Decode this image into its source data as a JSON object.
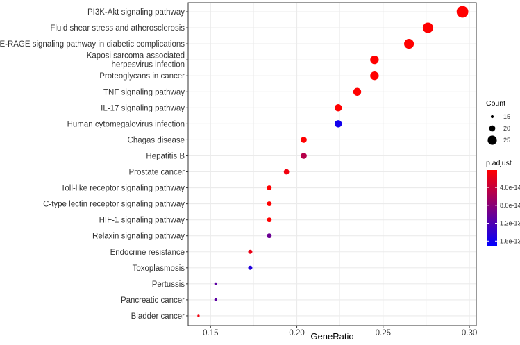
{
  "chart_data": {
    "type": "scatter",
    "title": "",
    "xlabel": "GeneRatio",
    "ylabel": "",
    "xlim": [
      0.137,
      0.304
    ],
    "xticks": [
      0.15,
      0.2,
      0.25,
      0.3
    ],
    "xtick_labels": [
      "0.15",
      "0.20",
      "0.25",
      "0.30"
    ],
    "grid": true,
    "legend_position": "right",
    "points": [
      {
        "term": "PI3K-Akt signaling pathway",
        "gene_ratio": 0.296,
        "count": 29,
        "p_adjust": 1e-15
      },
      {
        "term": "Fluid shear stress and atherosclerosis",
        "gene_ratio": 0.276,
        "count": 27,
        "p_adjust": 1.5e-15
      },
      {
        "term": "AGE-RAGE signaling pathway in diabetic complications",
        "gene_ratio": 0.265,
        "count": 26,
        "p_adjust": 1e-15
      },
      {
        "term": "Kaposi sarcoma-associated\nherpesvirus infection",
        "gene_ratio": 0.245,
        "count": 24,
        "p_adjust": 1e-15
      },
      {
        "term": "Proteoglycans in cancer",
        "gene_ratio": 0.245,
        "count": 24,
        "p_adjust": 1e-15
      },
      {
        "term": "TNF signaling pathway",
        "gene_ratio": 0.235,
        "count": 23,
        "p_adjust": 1e-15
      },
      {
        "term": "IL-17 signaling pathway",
        "gene_ratio": 0.224,
        "count": 22,
        "p_adjust": 1e-15
      },
      {
        "term": "Human cytomegalovirus infection",
        "gene_ratio": 0.224,
        "count": 22,
        "p_adjust": 1.6e-13
      },
      {
        "term": "Chagas disease",
        "gene_ratio": 0.204,
        "count": 20,
        "p_adjust": 1e-15
      },
      {
        "term": "Hepatitis B",
        "gene_ratio": 0.204,
        "count": 20,
        "p_adjust": 5e-14
      },
      {
        "term": "Prostate cancer",
        "gene_ratio": 0.194,
        "count": 19,
        "p_adjust": 1e-14
      },
      {
        "term": "Toll-like receptor signaling pathway",
        "gene_ratio": 0.184,
        "count": 18,
        "p_adjust": 1e-15
      },
      {
        "term": "C-type lectin receptor signaling pathway",
        "gene_ratio": 0.184,
        "count": 18,
        "p_adjust": 1e-15
      },
      {
        "term": "HIF-1 signaling pathway",
        "gene_ratio": 0.184,
        "count": 18,
        "p_adjust": 1e-15
      },
      {
        "term": "Relaxin signaling pathway",
        "gene_ratio": 0.184,
        "count": 18,
        "p_adjust": 1e-13
      },
      {
        "term": "Endocrine resistance",
        "gene_ratio": 0.173,
        "count": 17,
        "p_adjust": 1.5e-14
      },
      {
        "term": "Toxoplasmosis",
        "gene_ratio": 0.173,
        "count": 17,
        "p_adjust": 1.5e-13
      },
      {
        "term": "Pertussis",
        "gene_ratio": 0.153,
        "count": 15,
        "p_adjust": 1.1e-13
      },
      {
        "term": "Pancreatic cancer",
        "gene_ratio": 0.153,
        "count": 15,
        "p_adjust": 1.1e-13
      },
      {
        "term": "Bladder cancer",
        "gene_ratio": 0.143,
        "count": 14,
        "p_adjust": 1e-14
      }
    ],
    "size_legend": {
      "title": "Count",
      "values": [
        15,
        20,
        25
      ],
      "labels": [
        "15",
        "20",
        "25"
      ]
    },
    "color_legend": {
      "title": "p.adjust",
      "low_color": "#ff0000",
      "high_color": "#0000ff",
      "range": [
        1e-15,
        1.72e-13
      ],
      "ticks": [
        4e-14,
        8e-14,
        1.2e-13,
        1.6e-13
      ],
      "labels": [
        "4.0e-14",
        "8.0e-14",
        "1.2e-13",
        "1.6e-13"
      ]
    }
  },
  "colors": {
    "grid": "#ebebeb",
    "panel_border": "#333333",
    "tick": "#333333"
  }
}
